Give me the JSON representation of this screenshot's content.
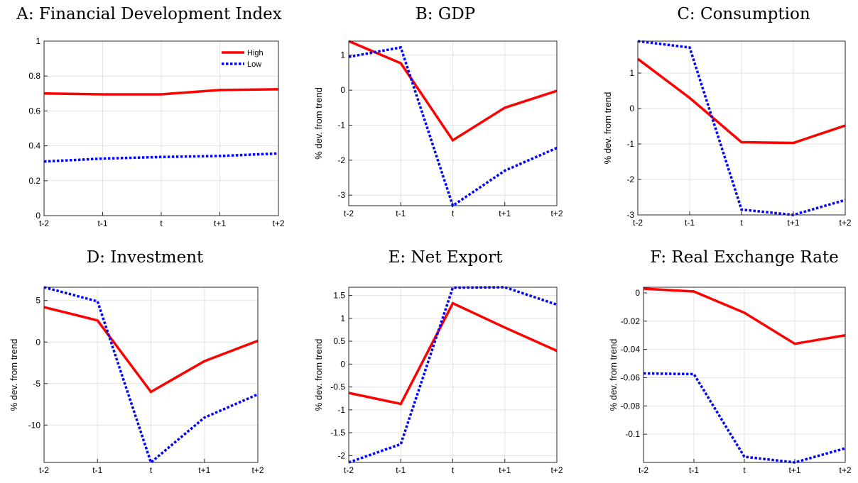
{
  "chart_data": [
    {
      "type": "line",
      "title": "A: Financial Development Index",
      "xlabel": "",
      "ylabel": "",
      "categories": [
        "t-2",
        "t-1",
        "t",
        "t+1",
        "t+2"
      ],
      "ylim": [
        0,
        1
      ],
      "yticks": [
        "0",
        "0.2",
        "0.4",
        "0.6",
        "0.8",
        "1"
      ],
      "grid": true,
      "legend": "top-right",
      "series": [
        {
          "name": "High",
          "color": "#ff0000",
          "style": "solid",
          "values": [
            0.7,
            0.695,
            0.695,
            0.72,
            0.724
          ]
        },
        {
          "name": "Low",
          "color": "#0000ff",
          "style": "dotted",
          "values": [
            0.31,
            0.327,
            0.336,
            0.342,
            0.356
          ]
        }
      ]
    },
    {
      "type": "line",
      "title": "B: GDP",
      "xlabel": "",
      "ylabel": "% dev. from trend",
      "categories": [
        "t-2",
        "t-1",
        "t",
        "t+1",
        "t+2"
      ],
      "ylim": [
        -3.3,
        1.4
      ],
      "yticks": [
        "-3",
        "-2",
        "-1",
        "0",
        "1"
      ],
      "grid": true,
      "series": [
        {
          "name": "",
          "color": "#ff0000",
          "style": "solid",
          "values": [
            1.4,
            0.77,
            -1.43,
            -0.5,
            -0.02
          ]
        },
        {
          "name": "",
          "color": "#0000ff",
          "style": "dotted",
          "values": [
            0.95,
            1.22,
            -3.3,
            -2.3,
            -1.65
          ]
        }
      ]
    },
    {
      "type": "line",
      "title": "C: Consumption",
      "xlabel": "",
      "ylabel": "% dev. from trend",
      "categories": [
        "t-2",
        "t-1",
        "t",
        "t+1",
        "t+2"
      ],
      "ylim": [
        -3,
        1.9
      ],
      "yticks": [
        "-3",
        "-2",
        "-1",
        "0",
        "1"
      ],
      "grid": true,
      "series": [
        {
          "name": "",
          "color": "#ff0000",
          "style": "solid",
          "values": [
            1.4,
            0.3,
            -0.95,
            -0.97,
            -0.48
          ]
        },
        {
          "name": "",
          "color": "#0000ff",
          "style": "dotted",
          "values": [
            1.9,
            1.72,
            -2.85,
            -3.0,
            -2.58
          ]
        }
      ]
    },
    {
      "type": "line",
      "title": "D: Investment",
      "xlabel": "",
      "ylabel": "% dev. from trend",
      "categories": [
        "t-2",
        "t-1",
        "t",
        "t+1",
        "t+2"
      ],
      "ylim": [
        -14.5,
        6.6
      ],
      "yticks": [
        "-10",
        "-5",
        "0",
        "5"
      ],
      "grid": true,
      "series": [
        {
          "name": "",
          "color": "#ff0000",
          "style": "solid",
          "values": [
            4.2,
            2.6,
            -6.0,
            -2.3,
            0.15
          ]
        },
        {
          "name": "",
          "color": "#0000ff",
          "style": "dotted",
          "values": [
            6.6,
            4.9,
            -14.5,
            -9.1,
            -6.3
          ]
        }
      ]
    },
    {
      "type": "line",
      "title": "E: Net Export",
      "xlabel": "",
      "ylabel": "% dev. from trend",
      "categories": [
        "t-2",
        "t-1",
        "t",
        "t+1",
        "t+2"
      ],
      "ylim": [
        -2.15,
        1.68
      ],
      "yticks": [
        "-2",
        "-1.5",
        "-1",
        "-0.5",
        "0",
        "0.5",
        "1",
        "1.5"
      ],
      "grid": true,
      "series": [
        {
          "name": "",
          "color": "#ff0000",
          "style": "solid",
          "values": [
            -0.63,
            -0.87,
            1.33,
            0.8,
            0.29
          ]
        },
        {
          "name": "",
          "color": "#0000ff",
          "style": "dotted",
          "values": [
            -2.15,
            -1.75,
            1.67,
            1.68,
            1.3
          ]
        }
      ]
    },
    {
      "type": "line",
      "title": "F: Real Exchange Rate",
      "xlabel": "",
      "ylabel": "% dev. from trend",
      "categories": [
        "t-2",
        "t-1",
        "t",
        "t+1",
        "t+2"
      ],
      "ylim": [
        -0.12,
        0.004
      ],
      "yticks": [
        "-0.1",
        "-0.08",
        "-0.06",
        "-0.04",
        "-0.02",
        "0"
      ],
      "grid": true,
      "series": [
        {
          "name": "",
          "color": "#ff0000",
          "style": "solid",
          "values": [
            0.003,
            0.001,
            -0.014,
            -0.036,
            -0.03
          ]
        },
        {
          "name": "",
          "color": "#0000ff",
          "style": "dotted",
          "values": [
            -0.057,
            -0.0575,
            -0.116,
            -0.12,
            -0.11
          ]
        }
      ]
    }
  ]
}
